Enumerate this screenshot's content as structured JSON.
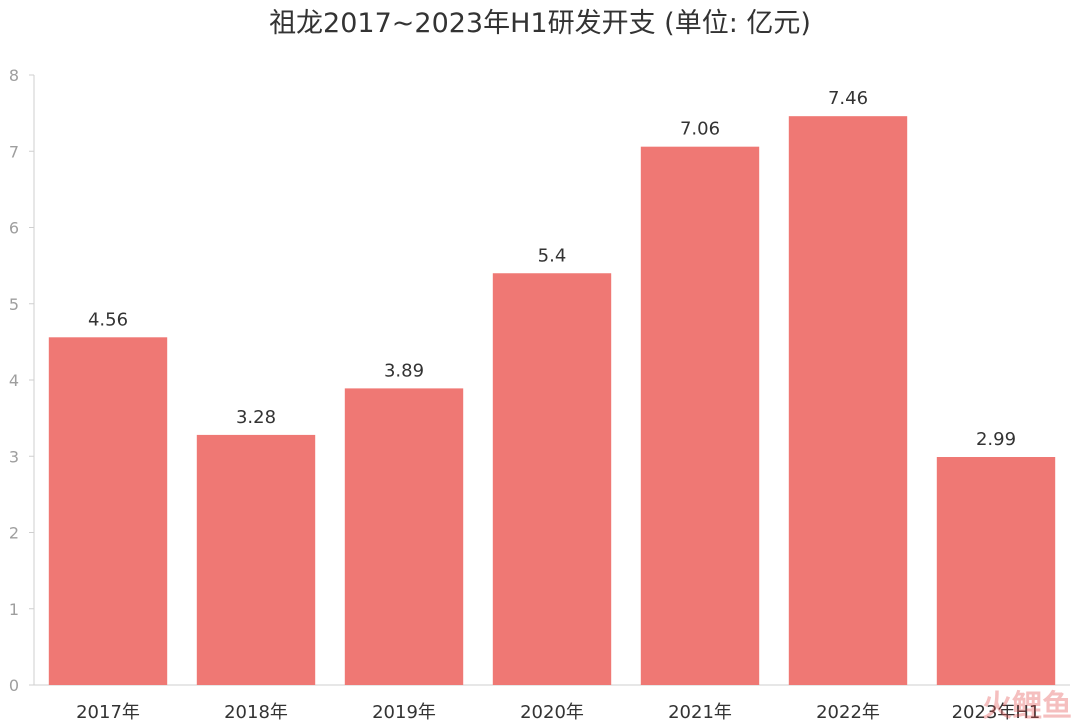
{
  "chart_data": {
    "type": "bar",
    "title": "祖龙2017~2023年H1研发开支 (单位: 亿元)",
    "categories": [
      "2017年",
      "2018年",
      "2019年",
      "2020年",
      "2021年",
      "2022年",
      "2023年H1"
    ],
    "values": [
      4.56,
      3.28,
      3.89,
      5.4,
      7.06,
      7.46,
      2.99
    ],
    "data_labels": [
      "4.56",
      "3.28",
      "3.89",
      "5.4",
      "7.06",
      "7.46",
      "2.99"
    ],
    "ylim": [
      0,
      8
    ],
    "yticks": [
      "0",
      "1",
      "2",
      "3",
      "4",
      "5",
      "6",
      "7",
      "8"
    ],
    "xlabel": "",
    "ylabel": "",
    "grid": false,
    "bar_color": "#ef7874"
  },
  "watermark": "火鲤鱼"
}
